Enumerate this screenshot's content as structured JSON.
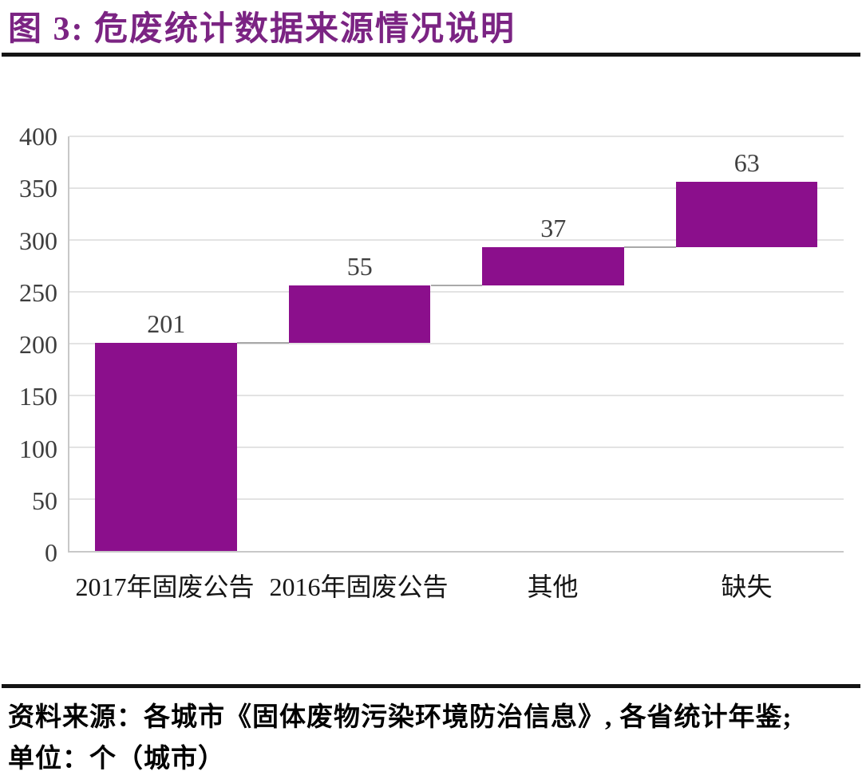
{
  "header": {
    "title": "图 3: 危废统计数据来源情况说明"
  },
  "chart_data": {
    "type": "bar",
    "subtype": "waterfall",
    "title": "图 3: 危废统计数据来源情况说明",
    "categories": [
      "2017年固废公告",
      "2016年固废公告",
      "其他",
      "缺失"
    ],
    "values": [
      201,
      55,
      37,
      63
    ],
    "cumulative": [
      201,
      256,
      293,
      356
    ],
    "data_labels": [
      "201",
      "55",
      "37",
      "63"
    ],
    "xlabel": "",
    "ylabel": "",
    "ylim": [
      0,
      400
    ],
    "yticks": [
      0,
      50,
      100,
      150,
      200,
      250,
      300,
      350,
      400
    ],
    "grid": "horizontal",
    "legend": "none",
    "bar_color": "#8B0F8C",
    "connector_color": "#A9A9A9",
    "gridline_color": "#E3E3E3",
    "label_color": "#404040",
    "unit": "个（城市）"
  },
  "footer": {
    "source": "资料来源：各城市《固体废物污染环境防治信息》, 各省统计年鉴;",
    "unit": "单位：个（城市）"
  },
  "colors": {
    "title": "#7B2483",
    "accent": "#8B0F8C",
    "rule": "#141414"
  }
}
